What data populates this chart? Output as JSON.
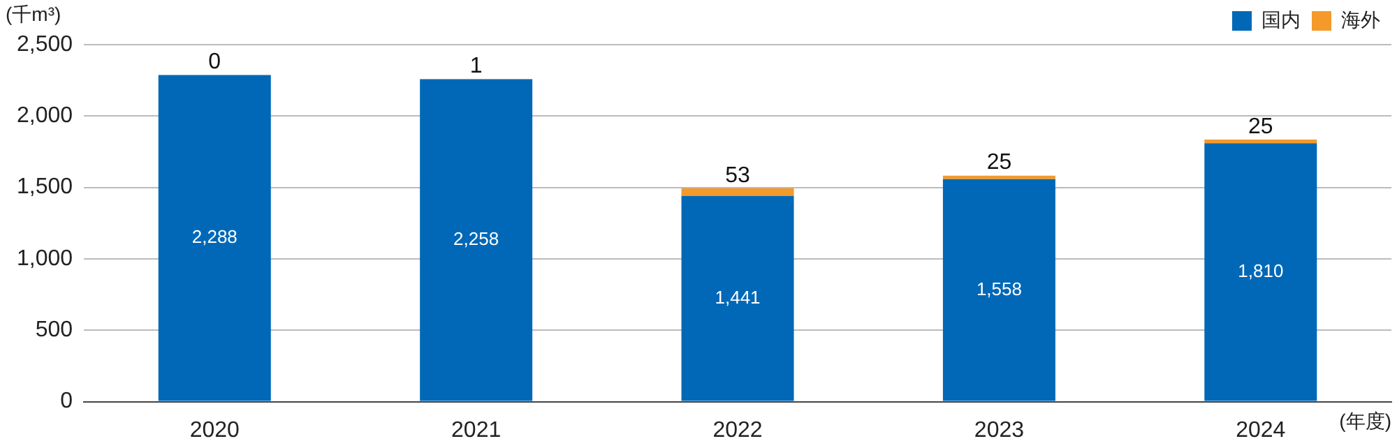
{
  "chart_data": {
    "type": "bar",
    "stacked": true,
    "ylabel": "(千m³)",
    "xlabel": "(年度)",
    "categories": [
      "2020",
      "2021",
      "2022",
      "2023",
      "2024"
    ],
    "series": [
      {
        "name": "国内",
        "color": "#0068b7",
        "values": [
          2288,
          2258,
          1441,
          1558,
          1810
        ],
        "value_labels": [
          "2,288",
          "2,258",
          "1,441",
          "1,558",
          "1,810"
        ]
      },
      {
        "name": "海外",
        "color": "#f39a2b",
        "values": [
          0,
          1,
          53,
          25,
          25
        ],
        "value_labels": [
          "0",
          "1",
          "53",
          "25",
          "25"
        ]
      }
    ],
    "ylim": [
      0,
      2500
    ],
    "yticks": [
      {
        "value": 0,
        "label": "0"
      },
      {
        "value": 500,
        "label": "500"
      },
      {
        "value": 1000,
        "label": "1,000"
      },
      {
        "value": 1500,
        "label": "1,500"
      },
      {
        "value": 2000,
        "label": "2,000"
      },
      {
        "value": 2500,
        "label": "2,500"
      }
    ],
    "grid": "y",
    "legend": "top right"
  }
}
